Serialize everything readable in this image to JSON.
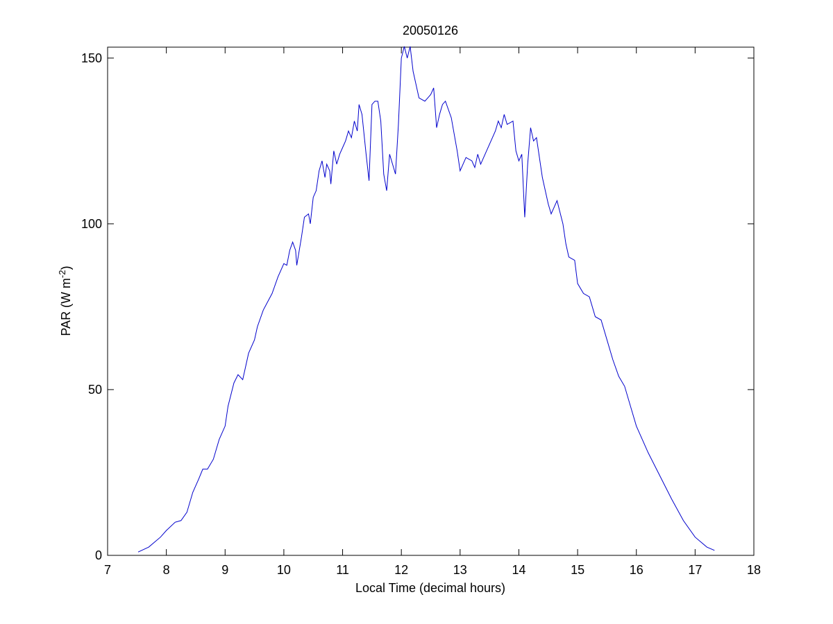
{
  "chart_data": {
    "type": "line",
    "title": "20050126",
    "x_label": "Local Time (decimal hours)",
    "y_label": [
      "PAR (W m",
      "-2",
      ")"
    ],
    "xlim": [
      7,
      18
    ],
    "ylim": [
      0,
      153.3
    ],
    "xticks": [
      7,
      8,
      9,
      10,
      11,
      12,
      13,
      14,
      15,
      16,
      17,
      18
    ],
    "yticks": [
      0,
      50,
      100,
      150
    ],
    "grid": false,
    "series": [
      {
        "color": "#0000cc",
        "x": [
          7.52,
          7.7,
          7.9,
          8.0,
          8.15,
          8.25,
          8.35,
          8.45,
          8.55,
          8.62,
          8.7,
          8.8,
          8.9,
          9.0,
          9.05,
          9.15,
          9.22,
          9.3,
          9.4,
          9.5,
          9.55,
          9.65,
          9.8,
          9.9,
          10.0,
          10.05,
          10.1,
          10.15,
          10.2,
          10.22,
          10.3,
          10.35,
          10.42,
          10.45,
          10.5,
          10.55,
          10.6,
          10.65,
          10.7,
          10.73,
          10.78,
          10.8,
          10.85,
          10.9,
          10.95,
          11.0,
          11.05,
          11.1,
          11.15,
          11.2,
          11.25,
          11.28,
          11.33,
          11.4,
          11.45,
          11.5,
          11.55,
          11.6,
          11.65,
          11.7,
          11.75,
          11.8,
          11.85,
          11.9,
          11.95,
          12.0,
          12.05,
          12.1,
          12.15,
          12.2,
          12.3,
          12.4,
          12.45,
          12.5,
          12.55,
          12.6,
          12.65,
          12.7,
          12.75,
          12.85,
          12.95,
          13.0,
          13.05,
          13.1,
          13.2,
          13.25,
          13.3,
          13.35,
          13.45,
          13.55,
          13.6,
          13.65,
          13.7,
          13.75,
          13.8,
          13.9,
          13.95,
          14.0,
          14.05,
          14.1,
          14.15,
          14.2,
          14.25,
          14.3,
          14.4,
          14.5,
          14.55,
          14.6,
          14.65,
          14.75,
          14.8,
          14.85,
          14.95,
          15.0,
          15.1,
          15.2,
          15.3,
          15.4,
          15.5,
          15.6,
          15.7,
          15.8,
          15.9,
          16.0,
          16.1,
          16.2,
          16.4,
          16.6,
          16.8,
          17.0,
          17.2,
          17.33
        ],
        "values": [
          1,
          2.5,
          5.5,
          7.5,
          10,
          10.5,
          13,
          19,
          23,
          26,
          26,
          29,
          35,
          39,
          45,
          52,
          54.5,
          53,
          61,
          65,
          69,
          74,
          79,
          84,
          88,
          87.5,
          92,
          94.5,
          92,
          87.5,
          96,
          102,
          103,
          100,
          108,
          110,
          116,
          119,
          114,
          118,
          116,
          112,
          122,
          118,
          121,
          123,
          125,
          128,
          126,
          131,
          128,
          136,
          133,
          121,
          113,
          136,
          137,
          137,
          131,
          115,
          110,
          121,
          118,
          115,
          130,
          150,
          153.5,
          150,
          153.5,
          146,
          138,
          137,
          138,
          139,
          141,
          129,
          133,
          136,
          137,
          132,
          122,
          116,
          118,
          120,
          119,
          117,
          121,
          118,
          122,
          126,
          128,
          131,
          129,
          133,
          130,
          131,
          122,
          119,
          121,
          102,
          118,
          129,
          125,
          126,
          114,
          106,
          103,
          105,
          107,
          100,
          94,
          90,
          89,
          82,
          79,
          78,
          72,
          71,
          65,
          59,
          54,
          51,
          45,
          39,
          35,
          31,
          24,
          17,
          10.5,
          5.5,
          2.5,
          1.5
        ]
      }
    ]
  }
}
